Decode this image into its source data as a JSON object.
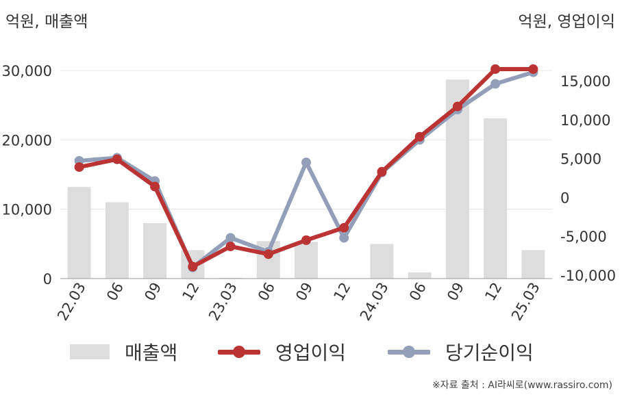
{
  "units": {
    "left": "억원, 매출액",
    "right": "억원, 영업이익"
  },
  "source": "※자료 출처 : AI라씨로(www.rassiro.com)",
  "colors": {
    "revenue": "#dddddd",
    "operating_profit": "#bb3333",
    "net_income": "#939fb8",
    "grid": "#e6e6e6",
    "axis": "#999999"
  },
  "legend": {
    "items": [
      {
        "label": "매출액",
        "icon": "bar-swatch-icon"
      },
      {
        "label": "영업이익",
        "icon": "line-marker-icon"
      },
      {
        "label": "당기순이익",
        "icon": "line-marker-icon"
      }
    ]
  },
  "chart_data": {
    "type": "bar+line",
    "categories": [
      "22.03",
      "06",
      "09",
      "12",
      "23.03",
      "06",
      "09",
      "12",
      "24.03",
      "06",
      "09",
      "12",
      "25.03"
    ],
    "left_axis": {
      "ylim": [
        0,
        30000
      ],
      "ticks": [
        0,
        10000,
        20000,
        30000
      ],
      "tick_labels": [
        "0",
        "10,000",
        "20,000",
        "30,000"
      ]
    },
    "right_axis": {
      "ylim": [
        -10000,
        16000
      ],
      "ticks": [
        -10000,
        -5000,
        0,
        5000,
        10000,
        15000
      ],
      "tick_labels": [
        "-10,000",
        "-5,000",
        "0",
        "5,000",
        "10,000",
        "15,000"
      ]
    },
    "series": [
      {
        "name": "매출액",
        "type": "bar",
        "axis": "left",
        "values": [
          13200,
          11000,
          8000,
          4100,
          100,
          5400,
          5300,
          0,
          5000,
          900,
          28700,
          23100,
          4100
        ]
      },
      {
        "name": "영업이익",
        "type": "line",
        "axis": "right",
        "values": [
          3900,
          4900,
          1400,
          -8900,
          -6300,
          -7300,
          -5500,
          -3900,
          3300,
          7800,
          11700,
          16500,
          16500
        ]
      },
      {
        "name": "당기순이익",
        "type": "line",
        "axis": "right",
        "values": [
          4700,
          5100,
          2100,
          -9000,
          -5200,
          -7000,
          4500,
          -5200,
          3200,
          7400,
          11300,
          14600,
          16100
        ]
      }
    ],
    "grid": true,
    "legend_position": "bottom"
  }
}
